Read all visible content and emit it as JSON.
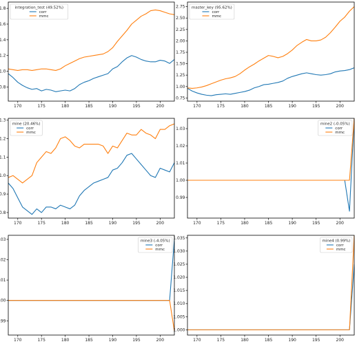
{
  "colors": {
    "corr": "#1f77b4",
    "mmc": "#ff7f0e",
    "axis": "#000000",
    "legend_border": "#cccccc"
  },
  "chart_data": [
    {
      "type": "line",
      "legend_title": "integration_test (49.52%)",
      "legend_loc": "upper-left",
      "xlim": [
        168,
        203
      ],
      "ylim": [
        0.62,
        1.88
      ],
      "xticks": [
        170,
        175,
        180,
        185,
        190,
        195,
        200
      ],
      "yticks": [
        0.8,
        1.0,
        1.2,
        1.4,
        1.6,
        1.8
      ],
      "ytick_labels": [
        "0.8",
        "1.0",
        "1.2",
        "1.4",
        "1.6",
        "1.8"
      ],
      "series": [
        {
          "name": "corr",
          "x": [
            168,
            169,
            170,
            171,
            172,
            173,
            174,
            175,
            176,
            177,
            178,
            179,
            180,
            181,
            182,
            183,
            184,
            185,
            186,
            187,
            188,
            189,
            190,
            191,
            192,
            193,
            194,
            195,
            196,
            197,
            198,
            199,
            200,
            201,
            202,
            203
          ],
          "y": [
            0.97,
            0.92,
            0.86,
            0.82,
            0.79,
            0.77,
            0.78,
            0.75,
            0.77,
            0.76,
            0.74,
            0.75,
            0.76,
            0.75,
            0.78,
            0.83,
            0.86,
            0.88,
            0.91,
            0.93,
            0.95,
            0.97,
            1.03,
            1.06,
            1.12,
            1.17,
            1.2,
            1.18,
            1.15,
            1.13,
            1.12,
            1.12,
            1.14,
            1.13,
            1.1,
            1.15
          ]
        },
        {
          "name": "mmc",
          "x": [
            168,
            169,
            170,
            171,
            172,
            173,
            174,
            175,
            176,
            177,
            178,
            179,
            180,
            181,
            182,
            183,
            184,
            185,
            186,
            187,
            188,
            189,
            190,
            191,
            192,
            193,
            194,
            195,
            196,
            197,
            198,
            199,
            200,
            201,
            202,
            203
          ],
          "y": [
            1.03,
            1.02,
            1.01,
            1.02,
            1.02,
            1.01,
            1.02,
            1.03,
            1.03,
            1.02,
            1.01,
            1.03,
            1.07,
            1.1,
            1.13,
            1.16,
            1.18,
            1.19,
            1.2,
            1.21,
            1.22,
            1.25,
            1.3,
            1.38,
            1.45,
            1.52,
            1.6,
            1.65,
            1.7,
            1.73,
            1.77,
            1.78,
            1.77,
            1.75,
            1.73,
            1.72
          ]
        }
      ]
    },
    {
      "type": "line",
      "legend_title": "master_key (95.62%)",
      "legend_loc": "upper-left",
      "xlim": [
        168,
        203
      ],
      "ylim": [
        0.68,
        2.85
      ],
      "xticks": [
        170,
        175,
        180,
        185,
        190,
        195,
        200
      ],
      "yticks": [
        0.75,
        1.0,
        1.25,
        1.5,
        1.75,
        2.0,
        2.25,
        2.5,
        2.75
      ],
      "ytick_labels": [
        "0.75",
        "1.00",
        "1.25",
        "1.50",
        "1.75",
        "2.00",
        "2.25",
        "2.50",
        "2.75"
      ],
      "series": [
        {
          "name": "corr",
          "x": [
            168,
            169,
            170,
            171,
            172,
            173,
            174,
            175,
            176,
            177,
            178,
            179,
            180,
            181,
            182,
            183,
            184,
            185,
            186,
            187,
            188,
            189,
            190,
            191,
            192,
            193,
            194,
            195,
            196,
            197,
            198,
            199,
            200,
            201,
            202,
            203
          ],
          "y": [
            0.96,
            0.9,
            0.86,
            0.83,
            0.81,
            0.8,
            0.82,
            0.83,
            0.84,
            0.83,
            0.85,
            0.87,
            0.89,
            0.92,
            0.97,
            1.0,
            1.04,
            1.05,
            1.07,
            1.09,
            1.12,
            1.18,
            1.22,
            1.25,
            1.28,
            1.3,
            1.28,
            1.26,
            1.25,
            1.26,
            1.28,
            1.32,
            1.34,
            1.35,
            1.37,
            1.41
          ]
        },
        {
          "name": "mmc",
          "x": [
            168,
            169,
            170,
            171,
            172,
            173,
            174,
            175,
            176,
            177,
            178,
            179,
            180,
            181,
            182,
            183,
            184,
            185,
            186,
            187,
            188,
            189,
            190,
            191,
            192,
            193,
            194,
            195,
            196,
            197,
            198,
            199,
            200,
            201,
            202,
            203
          ],
          "y": [
            0.97,
            0.96,
            0.97,
            0.99,
            1.02,
            1.06,
            1.1,
            1.14,
            1.17,
            1.19,
            1.22,
            1.28,
            1.36,
            1.43,
            1.49,
            1.56,
            1.62,
            1.68,
            1.66,
            1.63,
            1.66,
            1.72,
            1.8,
            1.9,
            1.97,
            2.03,
            2.0,
            2.0,
            2.02,
            2.08,
            2.18,
            2.3,
            2.43,
            2.52,
            2.65,
            2.75
          ]
        }
      ]
    },
    {
      "type": "line",
      "legend_title": "mine (20.46%)",
      "legend_loc": "upper-left",
      "xlim": [
        168,
        203
      ],
      "ylim": [
        0.77,
        1.31
      ],
      "xticks": [
        170,
        175,
        180,
        185,
        190,
        195,
        200
      ],
      "yticks": [
        0.8,
        0.9,
        1.0,
        1.1,
        1.2,
        1.3
      ],
      "ytick_labels": [
        "0.8",
        "0.9",
        "1.0",
        "1.1",
        "1.2",
        "1.3"
      ],
      "series": [
        {
          "name": "corr",
          "x": [
            168,
            169,
            170,
            171,
            172,
            173,
            174,
            175,
            176,
            177,
            178,
            179,
            180,
            181,
            182,
            183,
            184,
            185,
            186,
            187,
            188,
            189,
            190,
            191,
            192,
            193,
            194,
            195,
            196,
            197,
            198,
            199,
            200,
            201,
            202,
            203
          ],
          "y": [
            0.96,
            0.93,
            0.88,
            0.83,
            0.81,
            0.79,
            0.82,
            0.8,
            0.83,
            0.83,
            0.82,
            0.84,
            0.83,
            0.82,
            0.84,
            0.89,
            0.92,
            0.94,
            0.96,
            0.97,
            0.98,
            0.99,
            1.03,
            1.04,
            1.07,
            1.11,
            1.12,
            1.09,
            1.06,
            1.03,
            1.0,
            0.99,
            1.04,
            1.03,
            1.02,
            1.07
          ]
        },
        {
          "name": "mmc",
          "x": [
            168,
            169,
            170,
            171,
            172,
            173,
            174,
            175,
            176,
            177,
            178,
            179,
            180,
            181,
            182,
            183,
            184,
            185,
            186,
            187,
            188,
            189,
            190,
            191,
            192,
            193,
            194,
            195,
            196,
            197,
            198,
            199,
            200,
            201,
            202,
            203
          ],
          "y": [
            0.99,
            1.0,
            0.98,
            0.96,
            0.98,
            1.0,
            1.07,
            1.1,
            1.13,
            1.12,
            1.15,
            1.2,
            1.21,
            1.19,
            1.16,
            1.15,
            1.17,
            1.17,
            1.17,
            1.17,
            1.16,
            1.12,
            1.16,
            1.15,
            1.19,
            1.23,
            1.22,
            1.22,
            1.25,
            1.23,
            1.22,
            1.2,
            1.25,
            1.25,
            1.27,
            1.28
          ]
        }
      ]
    },
    {
      "type": "line",
      "legend_title": "mine2 (-0.05%)",
      "legend_loc": "upper-right",
      "xlim": [
        168,
        203
      ],
      "ylim": [
        0.978,
        1.036
      ],
      "xticks": [
        170,
        175,
        180,
        185,
        190,
        195,
        200
      ],
      "yticks": [
        0.99,
        1.0,
        1.01,
        1.02,
        1.03
      ],
      "ytick_labels": [
        "0.99",
        "1.00",
        "1.01",
        "1.02",
        "1.03"
      ],
      "series": [
        {
          "name": "corr",
          "x": [
            168,
            201,
            202,
            203
          ],
          "y": [
            1.0,
            1.0,
            0.982,
            1.036
          ]
        },
        {
          "name": "mmc",
          "x": [
            168,
            201,
            202,
            203
          ],
          "y": [
            1.0,
            1.0,
            1.0,
            1.036
          ]
        }
      ]
    },
    {
      "type": "line",
      "legend_title": "mine3 (-4.05%)",
      "legend_loc": "upper-right",
      "xlim": [
        168,
        203
      ],
      "ylim": [
        0.983,
        1.032
      ],
      "xticks": [
        170,
        175,
        180,
        185,
        190,
        195,
        200
      ],
      "yticks": [
        0.99,
        1.0,
        1.01,
        1.02,
        1.03
      ],
      "ytick_labels": [
        "0.99",
        "1.00",
        "1.01",
        "1.02",
        "1.03"
      ],
      "series": [
        {
          "name": "corr",
          "x": [
            168,
            202,
            203
          ],
          "y": [
            1.0,
            1.0,
            1.03
          ]
        },
        {
          "name": "mmc",
          "x": [
            168,
            202,
            203
          ],
          "y": [
            1.0,
            1.0,
            0.985
          ]
        }
      ]
    },
    {
      "type": "line",
      "legend_title": "mine4 (0.99%)",
      "legend_loc": "upper-right",
      "xlim": [
        168,
        203
      ],
      "ylim": [
        0.998,
        1.036
      ],
      "xticks": [
        170,
        175,
        180,
        185,
        190,
        195,
        200
      ],
      "yticks": [
        1.0,
        1.005,
        1.01,
        1.015,
        1.02,
        1.025,
        1.03,
        1.035
      ],
      "ytick_labels": [
        "1.000",
        "1.005",
        "1.010",
        "1.015",
        "1.020",
        "1.025",
        "1.030",
        "1.035"
      ],
      "series": [
        {
          "name": "corr",
          "x": [
            168,
            202,
            203
          ],
          "y": [
            1.0,
            1.0,
            1.025
          ]
        },
        {
          "name": "mmc",
          "x": [
            168,
            202,
            203
          ],
          "y": [
            1.0,
            1.0,
            1.036
          ]
        }
      ]
    }
  ]
}
